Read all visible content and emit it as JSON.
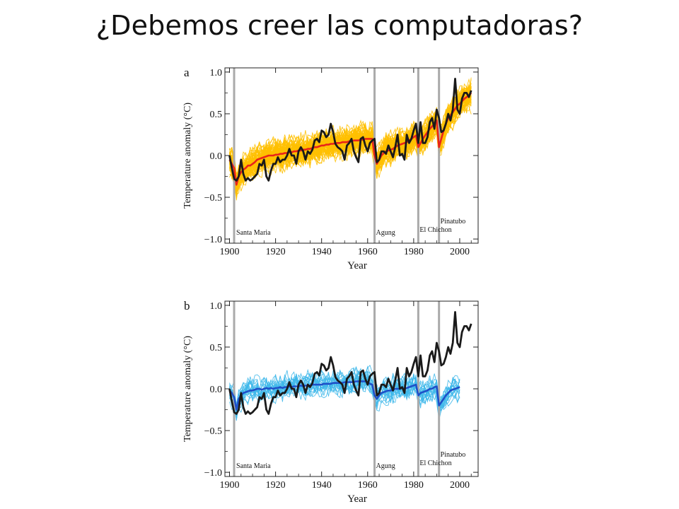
{
  "slide": {
    "title": "¿Debemos creer las computadoras?"
  },
  "colors": {
    "ensemble_a": "#FFC000",
    "mean_a": "#E8241A",
    "ensemble_b": "#3FB8EA",
    "mean_b": "#1E4FC8",
    "observed": "#1A1A1A",
    "volcano_line": "#AAAAAA"
  },
  "chart_data": [
    {
      "type": "line",
      "panel_label": "a",
      "xlabel": "Year",
      "ylabel": "Temperature anomaly (°C)",
      "xlim": [
        1898,
        2008
      ],
      "ylim": [
        -1.05,
        1.05
      ],
      "xticks": [
        "1900",
        "1920",
        "1940",
        "1960",
        "1980",
        "2000"
      ],
      "yticks": [
        "−1.0",
        "−0.5",
        "0.0",
        "0.5",
        "1.0"
      ],
      "volcanoes": [
        {
          "name": "Santa Maria",
          "year": 1902
        },
        {
          "name": "Agung",
          "year": 1963
        },
        {
          "name": "El Chichon",
          "year": 1982
        },
        {
          "name": "Pinatubo",
          "year": 1991
        }
      ],
      "observed": {
        "x": [
          1900,
          1901,
          1902,
          1903,
          1904,
          1905,
          1906,
          1907,
          1908,
          1909,
          1910,
          1911,
          1912,
          1913,
          1914,
          1915,
          1916,
          1917,
          1918,
          1919,
          1920,
          1921,
          1922,
          1923,
          1924,
          1925,
          1926,
          1927,
          1928,
          1929,
          1930,
          1931,
          1932,
          1933,
          1934,
          1935,
          1936,
          1937,
          1938,
          1939,
          1940,
          1941,
          1942,
          1943,
          1944,
          1945,
          1946,
          1947,
          1948,
          1949,
          1950,
          1951,
          1952,
          1953,
          1954,
          1955,
          1956,
          1957,
          1958,
          1959,
          1960,
          1961,
          1962,
          1963,
          1964,
          1965,
          1966,
          1967,
          1968,
          1969,
          1970,
          1971,
          1972,
          1973,
          1974,
          1975,
          1976,
          1977,
          1978,
          1979,
          1980,
          1981,
          1982,
          1983,
          1984,
          1985,
          1986,
          1987,
          1988,
          1989,
          1990,
          1991,
          1992,
          1993,
          1994,
          1995,
          1996,
          1997,
          1998,
          1999,
          2000,
          2001,
          2002,
          2003,
          2004,
          2005
        ],
        "y": [
          0.0,
          -0.15,
          -0.28,
          -0.3,
          -0.25,
          -0.05,
          -0.22,
          -0.3,
          -0.27,
          -0.3,
          -0.28,
          -0.25,
          -0.22,
          -0.1,
          -0.12,
          -0.05,
          -0.25,
          -0.3,
          -0.18,
          -0.1,
          -0.1,
          -0.02,
          -0.08,
          -0.05,
          -0.05,
          0.0,
          0.08,
          0.0,
          0.0,
          -0.1,
          0.05,
          0.1,
          0.05,
          -0.05,
          0.05,
          0.02,
          0.07,
          0.18,
          0.2,
          0.16,
          0.3,
          0.28,
          0.22,
          0.25,
          0.38,
          0.28,
          0.14,
          0.1,
          0.08,
          0.05,
          -0.05,
          0.12,
          0.15,
          0.2,
          0.05,
          -0.02,
          -0.08,
          0.2,
          0.22,
          0.12,
          0.05,
          0.15,
          0.18,
          0.2,
          -0.08,
          -0.05,
          0.05,
          0.05,
          0.02,
          0.12,
          0.05,
          -0.02,
          0.1,
          0.25,
          0.0,
          0.02,
          -0.05,
          0.25,
          0.15,
          0.2,
          0.3,
          0.38,
          0.15,
          0.4,
          0.15,
          0.15,
          0.22,
          0.4,
          0.45,
          0.32,
          0.55,
          0.45,
          0.28,
          0.3,
          0.38,
          0.5,
          0.42,
          0.55,
          0.92,
          0.55,
          0.5,
          0.68,
          0.75,
          0.75,
          0.7,
          0.78
        ]
      },
      "model_mean": {
        "x": [
          1900,
          1901,
          1902,
          1903,
          1904,
          1905,
          1906,
          1907,
          1908,
          1909,
          1910,
          1911,
          1912,
          1913,
          1914,
          1915,
          1916,
          1917,
          1918,
          1919,
          1920,
          1921,
          1922,
          1923,
          1924,
          1925,
          1926,
          1927,
          1928,
          1929,
          1930,
          1931,
          1932,
          1933,
          1934,
          1935,
          1936,
          1937,
          1938,
          1939,
          1940,
          1941,
          1942,
          1943,
          1944,
          1945,
          1946,
          1947,
          1948,
          1949,
          1950,
          1951,
          1952,
          1953,
          1954,
          1955,
          1956,
          1957,
          1958,
          1959,
          1960,
          1961,
          1962,
          1963,
          1964,
          1965,
          1966,
          1967,
          1968,
          1969,
          1970,
          1971,
          1972,
          1973,
          1974,
          1975,
          1976,
          1977,
          1978,
          1979,
          1980,
          1981,
          1982,
          1983,
          1984,
          1985,
          1986,
          1987,
          1988,
          1989,
          1990,
          1991,
          1992,
          1993,
          1994,
          1995,
          1996,
          1997,
          1998,
          1999,
          2000,
          2001,
          2002,
          2003,
          2004,
          2005
        ],
        "y": [
          -0.05,
          -0.1,
          -0.15,
          -0.35,
          -0.25,
          -0.2,
          -0.17,
          -0.15,
          -0.12,
          -0.12,
          -0.1,
          -0.08,
          -0.05,
          -0.04,
          -0.03,
          -0.02,
          -0.01,
          0.0,
          0.0,
          0.0,
          0.01,
          0.01,
          0.02,
          0.02,
          0.03,
          0.03,
          0.04,
          0.04,
          0.05,
          0.05,
          0.06,
          0.06,
          0.07,
          0.07,
          0.08,
          0.08,
          0.09,
          0.1,
          0.1,
          0.11,
          0.12,
          0.12,
          0.13,
          0.13,
          0.14,
          0.14,
          0.15,
          0.15,
          0.15,
          0.16,
          0.16,
          0.16,
          0.17,
          0.17,
          0.18,
          0.18,
          0.18,
          0.19,
          0.19,
          0.2,
          0.2,
          0.2,
          0.2,
          0.0,
          -0.1,
          -0.05,
          0.0,
          0.03,
          0.05,
          0.06,
          0.07,
          0.08,
          0.1,
          0.12,
          0.13,
          0.14,
          0.15,
          0.16,
          0.18,
          0.2,
          0.22,
          0.24,
          0.1,
          0.15,
          0.2,
          0.24,
          0.28,
          0.32,
          0.35,
          0.38,
          0.42,
          0.1,
          0.2,
          0.3,
          0.38,
          0.45,
          0.48,
          0.52,
          0.56,
          0.6,
          0.62,
          0.65,
          0.68,
          0.7,
          0.72,
          0.75
        ]
      },
      "ensemble": {
        "members": 58,
        "spread": 0.2
      }
    },
    {
      "type": "line",
      "panel_label": "b",
      "xlabel": "Year",
      "ylabel": "Temperature anomaly (°C)",
      "xlim": [
        1898,
        2008
      ],
      "ylim": [
        -1.05,
        1.05
      ],
      "xticks": [
        "1900",
        "1920",
        "1940",
        "1960",
        "1980",
        "2000"
      ],
      "yticks": [
        "−1.0",
        "−0.5",
        "0.0",
        "0.5",
        "1.0"
      ],
      "volcanoes": [
        {
          "name": "Santa Maria",
          "year": 1902
        },
        {
          "name": "Agung",
          "year": 1963
        },
        {
          "name": "El Chichon",
          "year": 1982
        },
        {
          "name": "Pinatubo",
          "year": 1991
        }
      ],
      "observed": {
        "x": [
          1900,
          1901,
          1902,
          1903,
          1904,
          1905,
          1906,
          1907,
          1908,
          1909,
          1910,
          1911,
          1912,
          1913,
          1914,
          1915,
          1916,
          1917,
          1918,
          1919,
          1920,
          1921,
          1922,
          1923,
          1924,
          1925,
          1926,
          1927,
          1928,
          1929,
          1930,
          1931,
          1932,
          1933,
          1934,
          1935,
          1936,
          1937,
          1938,
          1939,
          1940,
          1941,
          1942,
          1943,
          1944,
          1945,
          1946,
          1947,
          1948,
          1949,
          1950,
          1951,
          1952,
          1953,
          1954,
          1955,
          1956,
          1957,
          1958,
          1959,
          1960,
          1961,
          1962,
          1963,
          1964,
          1965,
          1966,
          1967,
          1968,
          1969,
          1970,
          1971,
          1972,
          1973,
          1974,
          1975,
          1976,
          1977,
          1978,
          1979,
          1980,
          1981,
          1982,
          1983,
          1984,
          1985,
          1986,
          1987,
          1988,
          1989,
          1990,
          1991,
          1992,
          1993,
          1994,
          1995,
          1996,
          1997,
          1998,
          1999,
          2000,
          2001,
          2002,
          2003,
          2004,
          2005
        ],
        "y": [
          0.0,
          -0.15,
          -0.28,
          -0.3,
          -0.25,
          -0.05,
          -0.22,
          -0.3,
          -0.27,
          -0.3,
          -0.28,
          -0.25,
          -0.22,
          -0.1,
          -0.12,
          -0.05,
          -0.25,
          -0.3,
          -0.18,
          -0.1,
          -0.1,
          -0.02,
          -0.08,
          -0.05,
          -0.05,
          0.0,
          0.08,
          0.0,
          0.0,
          -0.1,
          0.05,
          0.1,
          0.05,
          -0.05,
          0.05,
          0.02,
          0.07,
          0.18,
          0.2,
          0.16,
          0.3,
          0.28,
          0.22,
          0.25,
          0.38,
          0.28,
          0.14,
          0.1,
          0.08,
          0.05,
          -0.05,
          0.12,
          0.15,
          0.2,
          0.05,
          -0.02,
          -0.08,
          0.2,
          0.22,
          0.12,
          0.05,
          0.15,
          0.18,
          0.2,
          -0.08,
          -0.05,
          0.05,
          0.05,
          0.02,
          0.12,
          0.05,
          -0.02,
          0.1,
          0.25,
          0.0,
          0.02,
          -0.05,
          0.25,
          0.15,
          0.2,
          0.3,
          0.38,
          0.15,
          0.4,
          0.15,
          0.15,
          0.22,
          0.4,
          0.45,
          0.32,
          0.55,
          0.45,
          0.28,
          0.3,
          0.38,
          0.5,
          0.42,
          0.55,
          0.92,
          0.55,
          0.5,
          0.68,
          0.75,
          0.75,
          0.7,
          0.78
        ]
      },
      "model_mean": {
        "x": [
          1900,
          1901,
          1902,
          1903,
          1904,
          1905,
          1906,
          1907,
          1908,
          1909,
          1910,
          1911,
          1912,
          1913,
          1914,
          1915,
          1916,
          1917,
          1918,
          1919,
          1920,
          1921,
          1922,
          1923,
          1924,
          1925,
          1926,
          1927,
          1928,
          1929,
          1930,
          1931,
          1932,
          1933,
          1934,
          1935,
          1936,
          1937,
          1938,
          1939,
          1940,
          1941,
          1942,
          1943,
          1944,
          1945,
          1946,
          1947,
          1948,
          1949,
          1950,
          1951,
          1952,
          1953,
          1954,
          1955,
          1956,
          1957,
          1958,
          1959,
          1960,
          1961,
          1962,
          1963,
          1964,
          1965,
          1966,
          1967,
          1968,
          1969,
          1970,
          1971,
          1972,
          1973,
          1974,
          1975,
          1976,
          1977,
          1978,
          1979,
          1980,
          1981,
          1982,
          1983,
          1984,
          1985,
          1986,
          1987,
          1988,
          1989,
          1990,
          1991,
          1992,
          1993,
          1994,
          1995,
          1996,
          1997,
          1998,
          1999,
          2000
        ],
        "y": [
          -0.02,
          -0.05,
          -0.1,
          -0.25,
          -0.12,
          -0.08,
          -0.05,
          -0.04,
          -0.03,
          -0.02,
          -0.02,
          -0.01,
          0.0,
          0.0,
          -0.01,
          0.0,
          0.01,
          0.0,
          0.01,
          0.0,
          0.01,
          0.01,
          0.02,
          0.01,
          0.02,
          0.02,
          0.03,
          0.02,
          0.03,
          0.03,
          0.03,
          0.04,
          0.03,
          0.04,
          0.04,
          0.04,
          0.05,
          0.05,
          0.05,
          0.05,
          0.05,
          0.06,
          0.06,
          0.06,
          0.06,
          0.07,
          0.07,
          0.07,
          0.07,
          0.07,
          0.08,
          0.08,
          0.08,
          0.08,
          0.08,
          0.09,
          0.09,
          0.09,
          0.09,
          0.09,
          0.08,
          0.06,
          0.05,
          -0.08,
          -0.12,
          -0.08,
          -0.05,
          -0.04,
          -0.03,
          -0.02,
          -0.02,
          -0.01,
          0.0,
          0.0,
          0.0,
          0.01,
          0.0,
          0.01,
          0.02,
          0.03,
          0.04,
          0.05,
          -0.08,
          -0.05,
          -0.04,
          -0.03,
          -0.02,
          0.0,
          0.0,
          0.02,
          0.03,
          -0.2,
          -0.16,
          -0.12,
          -0.08,
          -0.05,
          -0.02,
          -0.01,
          0.0,
          0.01,
          0.02
        ]
      },
      "ensemble": {
        "members": 19,
        "spread": 0.18
      }
    }
  ]
}
